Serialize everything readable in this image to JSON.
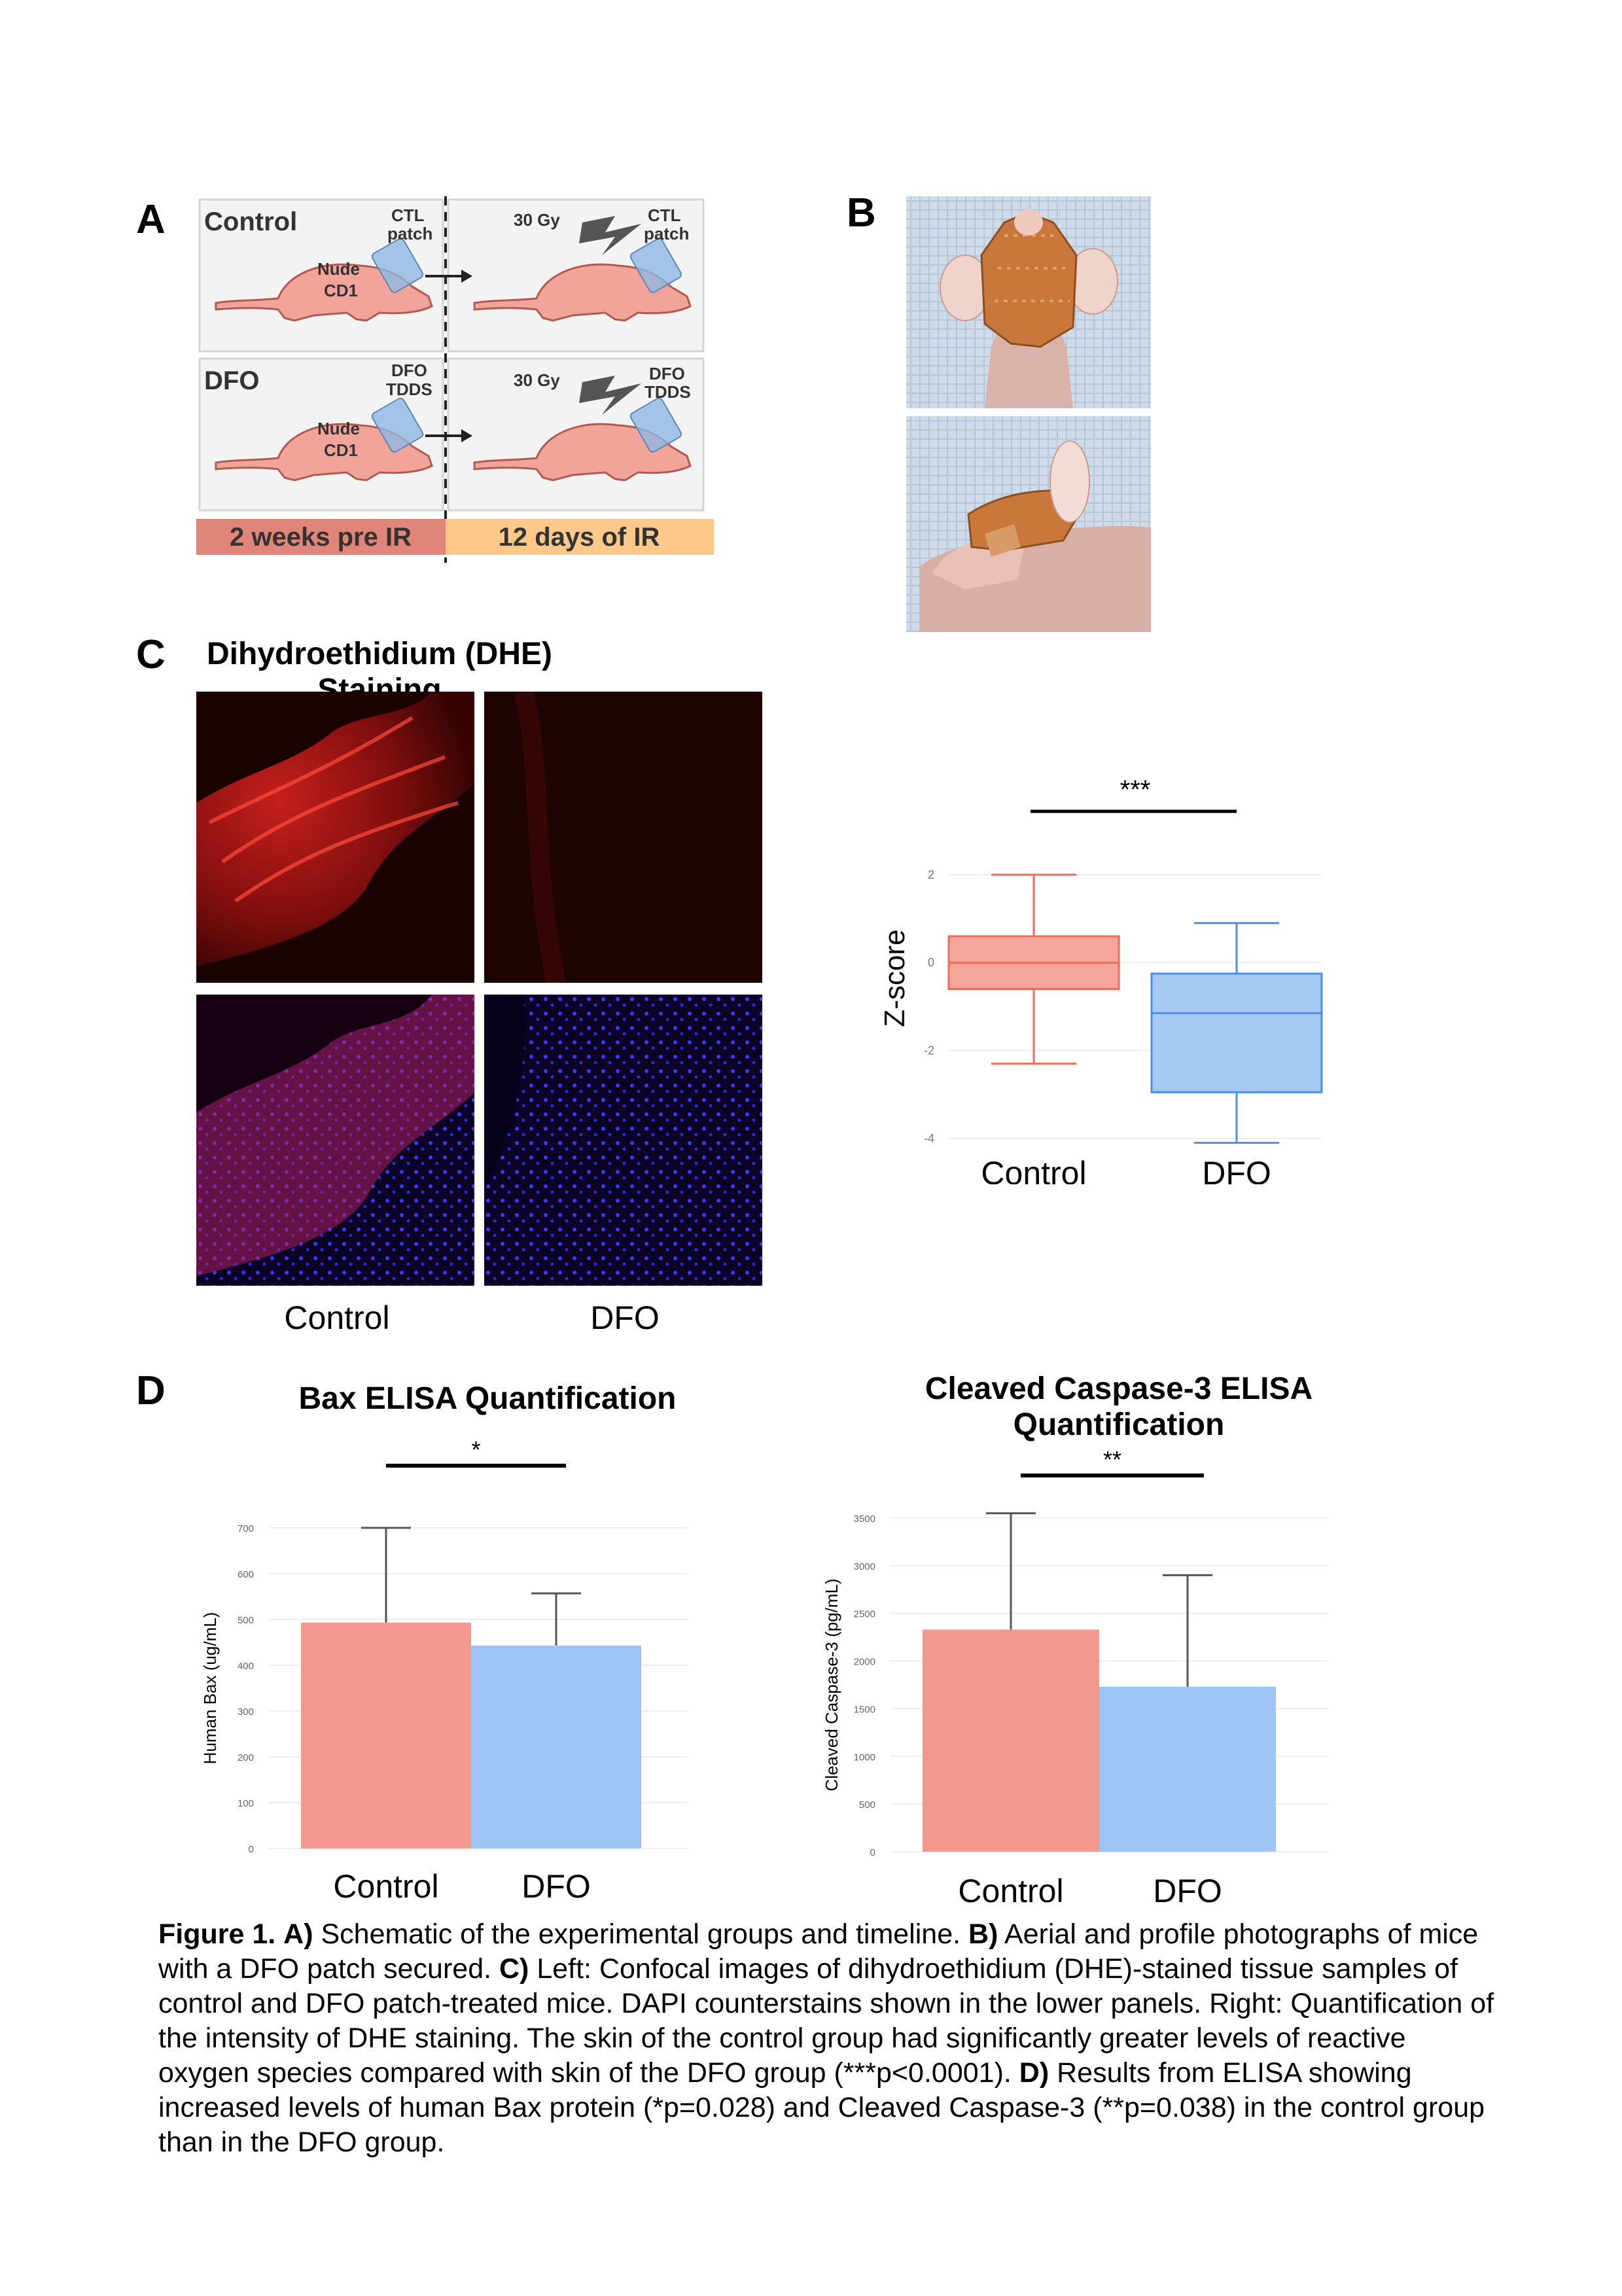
{
  "panels": {
    "a": "A",
    "b": "B",
    "c": "C",
    "d": "D"
  },
  "panel_a": {
    "control": "Control",
    "dfo": "DFO",
    "nude1": "Nude",
    "cd1_1": "CD1",
    "nude2": "Nude",
    "cd1_2": "CD1",
    "ctl1_a": "CTL",
    "ctl1_b": "patch",
    "ctl2_a": "CTL",
    "ctl2_b": "patch",
    "dfo1_a": "DFO",
    "dfo1_b": "TDDS",
    "dfo2_a": "DFO",
    "dfo2_b": "TDDS",
    "gy1": "30 Gy",
    "gy2": "30 Gy",
    "pre_ir": "2 weeks pre IR",
    "ir": "12 days of IR",
    "colors": {
      "mouse": "#f3a49a",
      "patch": "#8fb8e3",
      "pre_bar": "#e0857a",
      "ir_bar": "#fcc98a",
      "box_bg": "#f3f3f3"
    }
  },
  "panel_c": {
    "title": "Dihydroethidium (DHE) Staining",
    "label_control": "Control",
    "label_dfo": "DFO",
    "sig": "***",
    "ylabel": "Z-score"
  },
  "panel_d": {
    "bax_title": "Bax ELISA Quantification",
    "casp_title_1": "Cleaved Caspase-3 ELISA",
    "casp_title_2": "Quantification",
    "bax_sig": "*",
    "casp_sig": "**"
  },
  "chart_data": [
    {
      "type": "box",
      "ylabel": "Z-score",
      "categories": [
        "Control",
        "DFO"
      ],
      "yticks": [
        2,
        0,
        -2,
        -4
      ],
      "ylim": [
        -4.3,
        2.4
      ],
      "boxes": [
        {
          "category": "Control",
          "min": -2.3,
          "q1": -0.6,
          "median": 0.0,
          "q3": 0.6,
          "max": 2.0,
          "color": "#ee6b5e",
          "fill": "#f4a59c"
        },
        {
          "category": "DFO",
          "min": -4.1,
          "q1": -2.95,
          "median": -1.15,
          "q3": -0.25,
          "max": 0.9,
          "color": "#4a8ee6",
          "fill": "#a6c9f4"
        }
      ],
      "annotation": "***"
    },
    {
      "type": "bar",
      "title": "Bax ELISA Quantification",
      "ylabel": "Human Bax (ug/mL)",
      "categories": [
        "Control",
        "DFO"
      ],
      "values": [
        493,
        443
      ],
      "error_upper": [
        700,
        557
      ],
      "yticks": [
        0,
        100,
        200,
        300,
        400,
        500,
        600,
        700
      ],
      "ylim": [
        0,
        700
      ],
      "colors": [
        "#f2988e",
        "#9ec4f4"
      ],
      "annotation": "*"
    },
    {
      "type": "bar",
      "title": "Cleaved Caspase-3 ELISA Quantification",
      "ylabel": "Cleaved Caspase-3 (pg/mL)",
      "categories": [
        "Control",
        "DFO"
      ],
      "values": [
        2330,
        1730
      ],
      "error_upper": [
        3550,
        2900
      ],
      "yticks": [
        0,
        500,
        1000,
        1500,
        2000,
        2500,
        3000,
        3500
      ],
      "ylim": [
        0,
        3500
      ],
      "colors": [
        "#f2988e",
        "#9ec4f4"
      ],
      "annotation": "**"
    }
  ],
  "caption": {
    "fig": "Figure 1.",
    "a_lab": "A)",
    "a_text": " Schematic of the experimental groups and timeline. ",
    "b_lab": "B)",
    "b_text": " Aerial and profile photographs of mice with a DFO patch secured. ",
    "c_lab": "C)",
    "c_text": " Left: Confocal images of dihydroethidium (DHE)-stained tissue samples of control and DFO patch-treated mice. DAPI counterstains shown in the lower panels. Right: Quantification of the intensity of DHE staining. The skin of the control group had significantly greater levels of reactive oxygen species compared with skin of the DFO group (***p<0.0001). ",
    "d_lab": "D)",
    "d_text": " Results from ELISA showing increased levels of human Bax protein (*p=0.028) and Cleaved Caspase-3 (**p=0.038) in the control group than in the DFO group."
  }
}
